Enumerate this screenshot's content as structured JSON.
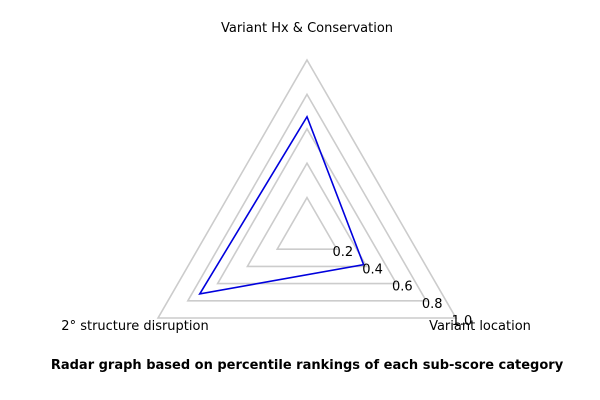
{
  "chart_data": {
    "type": "radar",
    "title": "",
    "axes": [
      "Variant Hx & Conservation",
      "Variant location",
      "2° structure disruption"
    ],
    "rlim": [
      0,
      1.0
    ],
    "ticks": [
      0.2,
      0.4,
      0.6,
      0.8,
      1.0
    ],
    "tick_labels": [
      "0.2",
      "0.4",
      "0.6",
      "0.8",
      "1.0"
    ],
    "grid": true,
    "series": [
      {
        "values": [
          0.67,
          0.38,
          0.72
        ],
        "color": "#0000dd"
      }
    ],
    "ring_color": "#cccccc"
  },
  "caption": "Radar graph based on percentile rankings of each sub-score category"
}
